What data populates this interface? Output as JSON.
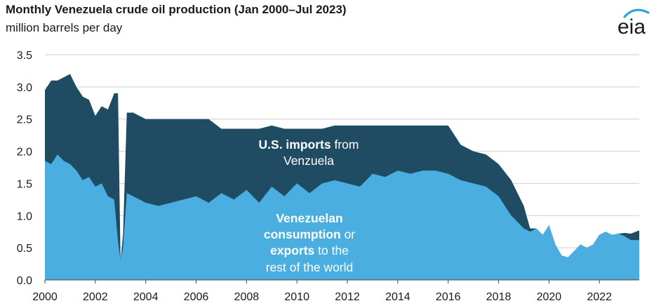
{
  "title": "Monthly Venezuela crude oil production (Jan 2000–Jul 2023)",
  "subtitle": "million barrels per day",
  "logo_text": "eia",
  "colors": {
    "us_imports": "#1f4b63",
    "rest_of_world": "#4aaee0",
    "grid": "#cfcfcf",
    "text": "#1a1a1a",
    "logo_arc": "#2a9fd8"
  },
  "annotations": {
    "us": {
      "line1_bold": "U.S. imports",
      "line1_rest": " from",
      "line2": "Venzuela"
    },
    "rest": {
      "line1": "Venezuelan",
      "line2_bold": "consumption",
      "line2_rest": " or",
      "line3_bold": "exports",
      "line3_rest": " to the",
      "line4": "rest of the world"
    }
  },
  "chart_data": {
    "type": "area",
    "stacked": true,
    "title": "Monthly Venezuela crude oil production (Jan 2000–Jul 2023)",
    "ylabel": "million barrels per day",
    "xlim": [
      2000,
      2023.58
    ],
    "ylim": [
      0,
      3.5
    ],
    "x_ticks": [
      2000,
      2002,
      2004,
      2006,
      2008,
      2010,
      2012,
      2014,
      2016,
      2018,
      2020,
      2022
    ],
    "x_tick_labels": [
      "2000",
      "2002",
      "2004",
      "2006",
      "2008",
      "2010",
      "2012",
      "2014",
      "2016",
      "2018",
      "2020",
      "2022"
    ],
    "y_ticks": [
      0,
      0.5,
      1.0,
      1.5,
      2.0,
      2.5,
      3.0,
      3.5
    ],
    "y_tick_labels": [
      "0.0",
      "0.5",
      "1.0",
      "1.5",
      "2.0",
      "2.5",
      "3.0",
      "3.5"
    ],
    "grid": true,
    "legend": "none (labels placed inside areas)",
    "x": [
      2000.0,
      2000.25,
      2000.5,
      2000.75,
      2001.0,
      2001.25,
      2001.5,
      2001.75,
      2002.0,
      2002.25,
      2002.5,
      2002.75,
      2002.9,
      2003.0,
      2003.1,
      2003.25,
      2003.5,
      2004.0,
      2004.5,
      2005.0,
      2005.5,
      2006.0,
      2006.5,
      2007.0,
      2007.5,
      2008.0,
      2008.5,
      2009.0,
      2009.5,
      2010.0,
      2010.5,
      2011.0,
      2011.5,
      2012.0,
      2012.5,
      2013.0,
      2013.5,
      2014.0,
      2014.5,
      2015.0,
      2015.5,
      2016.0,
      2016.5,
      2017.0,
      2017.5,
      2018.0,
      2018.5,
      2019.0,
      2019.25,
      2019.5,
      2019.75,
      2020.0,
      2020.25,
      2020.5,
      2020.75,
      2021.0,
      2021.25,
      2021.5,
      2021.75,
      2022.0,
      2022.25,
      2022.5,
      2022.75,
      2023.0,
      2023.25,
      2023.58
    ],
    "series": [
      {
        "name": "Venezuelan consumption or exports to the rest of the world",
        "values": [
          1.85,
          1.8,
          1.95,
          1.85,
          1.8,
          1.7,
          1.55,
          1.6,
          1.45,
          1.5,
          1.3,
          1.25,
          0.6,
          0.3,
          0.5,
          1.35,
          1.3,
          1.2,
          1.15,
          1.2,
          1.25,
          1.3,
          1.2,
          1.35,
          1.25,
          1.4,
          1.2,
          1.45,
          1.3,
          1.5,
          1.35,
          1.5,
          1.55,
          1.5,
          1.45,
          1.65,
          1.6,
          1.7,
          1.65,
          1.7,
          1.7,
          1.65,
          1.55,
          1.5,
          1.45,
          1.3,
          1.0,
          0.8,
          0.75,
          0.8,
          0.7,
          0.85,
          0.55,
          0.38,
          0.35,
          0.45,
          0.55,
          0.5,
          0.55,
          0.7,
          0.75,
          0.7,
          0.72,
          0.68,
          0.62,
          0.62
        ]
      },
      {
        "name": "U.S. imports from Venzuela",
        "values": [
          1.1,
          1.3,
          1.15,
          1.3,
          1.4,
          1.3,
          1.3,
          1.2,
          1.1,
          1.2,
          1.35,
          1.65,
          2.3,
          0.0,
          0.2,
          1.25,
          1.3,
          1.3,
          1.35,
          1.3,
          1.25,
          1.2,
          1.3,
          1.0,
          1.1,
          0.95,
          1.15,
          0.95,
          1.05,
          0.85,
          1.0,
          0.85,
          0.85,
          0.9,
          0.95,
          0.75,
          0.8,
          0.7,
          0.75,
          0.7,
          0.7,
          0.75,
          0.55,
          0.5,
          0.5,
          0.5,
          0.55,
          0.35,
          0.05,
          0.0,
          0.0,
          0.0,
          0.0,
          0.0,
          0.0,
          0.0,
          0.0,
          0.0,
          0.0,
          0.0,
          0.0,
          0.0,
          0.0,
          0.05,
          0.1,
          0.15
        ]
      }
    ]
  }
}
